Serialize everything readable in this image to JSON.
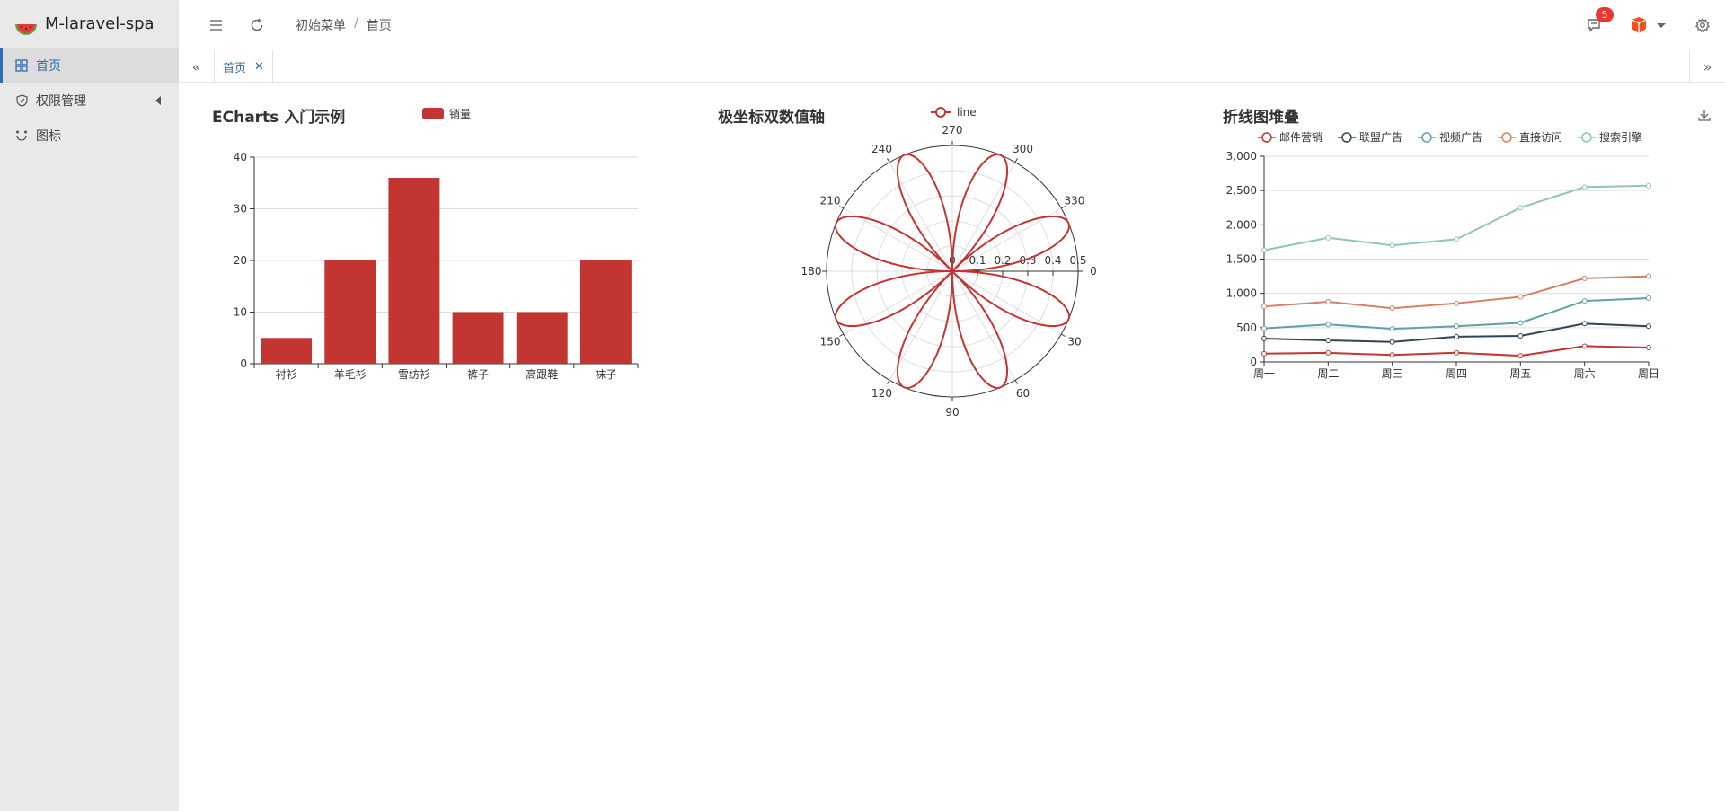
{
  "app": {
    "title": "M-laravel-spa"
  },
  "sidebar": {
    "items": [
      {
        "label": "首页",
        "icon": "dashboard-icon",
        "active": true
      },
      {
        "label": "权限管理",
        "icon": "shield-icon",
        "has_children": true
      },
      {
        "label": "图标",
        "icon": "loading-icon"
      }
    ]
  },
  "header": {
    "breadcrumb": [
      "初始菜单",
      "首页"
    ],
    "notifications": {
      "count": "5"
    }
  },
  "tabs": [
    {
      "label": "首页",
      "active": true
    }
  ],
  "colors": {
    "accent": "#2d6cb5",
    "bar": "#c23531",
    "badge": "#e53935"
  },
  "chart_data": [
    {
      "type": "bar",
      "title": "ECharts 入门示例",
      "legend": [
        "销量"
      ],
      "categories": [
        "衬衫",
        "羊毛衫",
        "雪纺衫",
        "裤子",
        "高跟鞋",
        "袜子"
      ],
      "values": [
        5,
        20,
        36,
        10,
        10,
        20
      ],
      "ylim": [
        0,
        40
      ],
      "yticks": [
        "0",
        "10",
        "20",
        "30",
        "40"
      ]
    },
    {
      "type": "line",
      "subtype": "polar",
      "title": "极坐标双数值轴",
      "legend": [
        "line"
      ],
      "radial_ticks": [
        "0",
        "0.1",
        "0.2",
        "0.3",
        "0.4",
        "0.5"
      ],
      "angle_ticks": [
        "0",
        "30",
        "60",
        "90",
        "120",
        "150",
        "180",
        "210",
        "240",
        "270",
        "300",
        "330"
      ],
      "curve": "r = |sin(2t)·cos(2t)|",
      "rmax": 0.5
    },
    {
      "type": "line",
      "title": "折线图堆叠",
      "categories": [
        "周一",
        "周二",
        "周三",
        "周四",
        "周五",
        "周六",
        "周日"
      ],
      "ylim": [
        0,
        3000
      ],
      "yticks": [
        "0",
        "500",
        "1,000",
        "1,500",
        "2,000",
        "2,500",
        "3,000"
      ],
      "series": [
        {
          "name": "邮件营销",
          "color": "#c23531",
          "values": [
            120,
            132,
            101,
            134,
            90,
            230,
            210
          ]
        },
        {
          "name": "联盟广告",
          "color": "#2f4554",
          "values": [
            340,
            314,
            292,
            368,
            380,
            560,
            520
          ]
        },
        {
          "name": "视频广告",
          "color": "#61a0a8",
          "values": [
            490,
            546,
            483,
            522,
            570,
            890,
            930
          ]
        },
        {
          "name": "直接访问",
          "color": "#d48265",
          "values": [
            810,
            878,
            784,
            854,
            950,
            1220,
            1250
          ]
        },
        {
          "name": "搜索引擎",
          "color": "#91c7ae",
          "values": [
            1630,
            1810,
            1700,
            1790,
            2250,
            2550,
            2570
          ]
        }
      ]
    }
  ]
}
